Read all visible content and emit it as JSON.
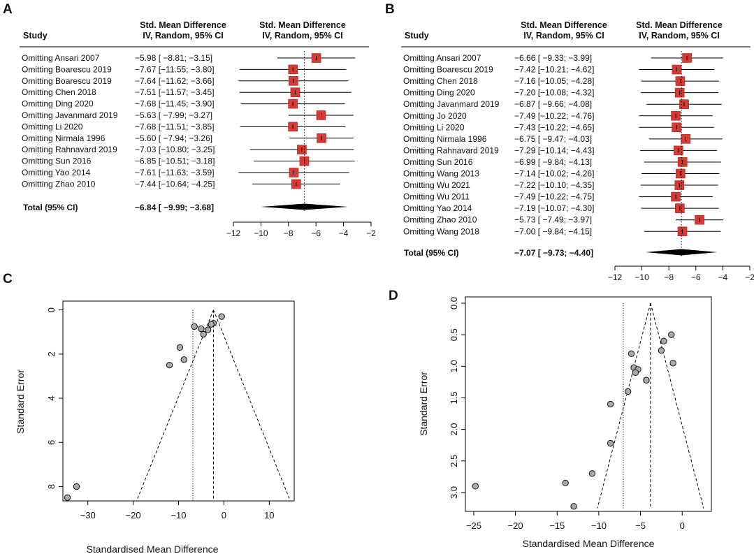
{
  "panels": {
    "A": {
      "letter": "A",
      "study_header": "Study",
      "effect_header": [
        "Std. Mean Difference",
        "IV, Random, 95% CI"
      ],
      "plot_header": [
        "Std. Mean Difference",
        "IV, Random, 95% CI"
      ],
      "total_label": "Total (95% CI)",
      "total_ci_text": "−6.84 [ −9.99; −3.68]"
    },
    "B": {
      "letter": "B",
      "study_header": "Study",
      "effect_header": [
        "Std. Mean Difference",
        "IV, Random, 95% CI"
      ],
      "plot_header": [
        "Std. Mean Difference",
        "IV, Random, 95% CI"
      ],
      "total_label": "Total (95% CI)",
      "total_ci_text": "−7.07 [ −9.73; −4.40]"
    },
    "C": {
      "letter": "C",
      "ylabel": "Standard Error",
      "xlabel": "Standardised Mean Difference"
    },
    "D": {
      "letter": "D",
      "ylabel": "Standard Error",
      "xlabel": "Standardised Mean Difference"
    }
  },
  "chart_data": [
    {
      "id": "A",
      "type": "forest",
      "xlim": [
        -12,
        -2
      ],
      "xticks": [
        -12,
        -10,
        -8,
        -6,
        -4,
        -2
      ],
      "xtick_labels": [
        "−12",
        "−10",
        "−8",
        "−6",
        "−4",
        "−2"
      ],
      "studies": [
        {
          "label": "Omitting Ansari 2007",
          "est": -5.98,
          "lo": -8.81,
          "hi": -3.15,
          "ci_text": "−5.98 [ −8.81; −3.15]"
        },
        {
          "label": "Omitting Boarescu 2019",
          "est": -7.67,
          "lo": -11.55,
          "hi": -3.8,
          "ci_text": "−7.67 [−11.55; −3.80]"
        },
        {
          "label": "Omitting Boarescu 2019",
          "est": -7.64,
          "lo": -11.62,
          "hi": -3.66,
          "ci_text": "−7.64 [−11.62; −3.66]"
        },
        {
          "label": "Omitting Chen 2018",
          "est": -7.51,
          "lo": -11.57,
          "hi": -3.45,
          "ci_text": "−7.51 [−11.57; −3.45]"
        },
        {
          "label": "Omitting Ding 2020",
          "est": -7.68,
          "lo": -11.45,
          "hi": -3.9,
          "ci_text": "−7.68 [−11.45; −3.90]"
        },
        {
          "label": "Omitting Javanmard 2019",
          "est": -5.63,
          "lo": -7.99,
          "hi": -3.27,
          "ci_text": "−5.63 [ −7.99; −3.27]"
        },
        {
          "label": "Omitting Li 2020",
          "est": -7.68,
          "lo": -11.51,
          "hi": -3.85,
          "ci_text": "−7.68 [−11.51; −3.85]"
        },
        {
          "label": "Omitting Nirmala 1996",
          "est": -5.6,
          "lo": -7.94,
          "hi": -3.26,
          "ci_text": "−5.60 [ −7.94; −3.26]"
        },
        {
          "label": "Omitting Rahnavard 2019",
          "est": -7.03,
          "lo": -10.8,
          "hi": -3.25,
          "ci_text": "−7.03 [−10.80; −3.25]"
        },
        {
          "label": "Omitting Sun 2016",
          "est": -6.85,
          "lo": -10.51,
          "hi": -3.18,
          "ci_text": "−6.85 [−10.51; −3.18]"
        },
        {
          "label": "Omitting Yao 2014",
          "est": -7.61,
          "lo": -11.63,
          "hi": -3.59,
          "ci_text": "−7.61 [−11.63; −3.59]"
        },
        {
          "label": "Omitting Zhao 2010",
          "est": -7.44,
          "lo": -10.64,
          "hi": -4.25,
          "ci_text": "−7.44 [−10.64; −4.25]"
        }
      ],
      "total": {
        "est": -6.84,
        "lo": -9.99,
        "hi": -3.68
      }
    },
    {
      "id": "B",
      "type": "forest",
      "xlim": [
        -12,
        -2
      ],
      "xticks": [
        -12,
        -10,
        -8,
        -6,
        -4,
        -2
      ],
      "xtick_labels": [
        "−12",
        "−10",
        "−8",
        "−6",
        "−4",
        "−2"
      ],
      "studies": [
        {
          "label": "Omitting Ansari 2007",
          "est": -6.66,
          "lo": -9.33,
          "hi": -3.99,
          "ci_text": "−6.66 [ −9.33; −3.99]"
        },
        {
          "label": "Omitting Boarescu 2019",
          "est": -7.42,
          "lo": -10.21,
          "hi": -4.62,
          "ci_text": "−7.42 [−10.21; −4.62]"
        },
        {
          "label": "Omitting Chen 2018",
          "est": -7.16,
          "lo": -10.05,
          "hi": -4.28,
          "ci_text": "−7.16 [−10.05; −4.28]"
        },
        {
          "label": "Omitting Ding 2020",
          "est": -7.2,
          "lo": -10.08,
          "hi": -4.32,
          "ci_text": "−7.20 [−10.08; −4.32]"
        },
        {
          "label": "Omitting Javanmard 2019",
          "est": -6.87,
          "lo": -9.66,
          "hi": -4.08,
          "ci_text": "−6.87 [ −9.66; −4.08]"
        },
        {
          "label": "Omitting Jo 2020",
          "est": -7.49,
          "lo": -10.22,
          "hi": -4.76,
          "ci_text": "−7.49 [−10.22; −4.76]"
        },
        {
          "label": "Omitting Li 2020",
          "est": -7.43,
          "lo": -10.22,
          "hi": -4.65,
          "ci_text": "−7.43 [−10.22; −4.65]"
        },
        {
          "label": "Omitting Nirmala 1996",
          "est": -6.75,
          "lo": -9.47,
          "hi": -4.03,
          "ci_text": "−6.75 [ −9.47; −4.03]"
        },
        {
          "label": "Omitting Rahnavard 2019",
          "est": -7.29,
          "lo": -10.14,
          "hi": -4.43,
          "ci_text": "−7.29 [−10.14; −4.43]"
        },
        {
          "label": "Omitting Sun 2016",
          "est": -6.99,
          "lo": -9.84,
          "hi": -4.13,
          "ci_text": "−6.99 [ −9.84; −4.13]"
        },
        {
          "label": "Omitting Wang 2013",
          "est": -7.14,
          "lo": -10.02,
          "hi": -4.26,
          "ci_text": "−7.14 [−10.02; −4.26]"
        },
        {
          "label": "Omitting Wu 2021",
          "est": -7.22,
          "lo": -10.1,
          "hi": -4.35,
          "ci_text": "−7.22 [−10.10; −4.35]"
        },
        {
          "label": "Omitting Wu 2011",
          "est": -7.49,
          "lo": -10.22,
          "hi": -4.75,
          "ci_text": "−7.49 [−10.22; −4.75]"
        },
        {
          "label": "Omitting Yao 2014",
          "est": -7.19,
          "lo": -10.07,
          "hi": -4.3,
          "ci_text": "−7.19 [−10.07; −4.30]"
        },
        {
          "label": "Omitting Zhao 2010",
          "est": -5.73,
          "lo": -7.49,
          "hi": -3.97,
          "ci_text": "−5.73 [ −7.49; −3.97]"
        },
        {
          "label": "Omitting Wang 2018",
          "est": -7.0,
          "lo": -9.84,
          "hi": -4.15,
          "ci_text": "−7.00 [ −9.84; −4.15]"
        }
      ],
      "total": {
        "est": -7.07,
        "lo": -9.73,
        "hi": -4.4
      }
    },
    {
      "id": "C",
      "type": "scatter",
      "subtype": "funnel",
      "xlim": [
        -35.5,
        15.5
      ],
      "ylim": [
        8.65,
        -0.4
      ],
      "xticks": [
        -30,
        -20,
        -10,
        0,
        10
      ],
      "xtick_labels": [
        "−30",
        "−20",
        "−10",
        "0",
        "10"
      ],
      "yticks": [
        0,
        2,
        4,
        6,
        8
      ],
      "ytick_labels": [
        "0",
        "2",
        "4",
        "6",
        "8"
      ],
      "pooled_est": -2.3,
      "random_est": -6.84,
      "funnel_max_se": 8.65,
      "points": [
        {
          "x": -0.5,
          "y": 0.3
        },
        {
          "x": -2.3,
          "y": 0.6
        },
        {
          "x": -2.8,
          "y": 0.65
        },
        {
          "x": -6.5,
          "y": 0.75
        },
        {
          "x": -5.0,
          "y": 0.85
        },
        {
          "x": -3.5,
          "y": 0.9
        },
        {
          "x": -4.5,
          "y": 1.1
        },
        {
          "x": -9.7,
          "y": 1.7
        },
        {
          "x": -8.8,
          "y": 2.25
        },
        {
          "x": -12.0,
          "y": 2.5
        },
        {
          "x": -32.5,
          "y": 8.0
        },
        {
          "x": -34.5,
          "y": 8.5
        }
      ]
    },
    {
      "id": "D",
      "type": "scatter",
      "subtype": "funnel",
      "xlim": [
        -26,
        3.5
      ],
      "ylim": [
        3.3,
        -0.1
      ],
      "xticks": [
        -25,
        -20,
        -15,
        -10,
        -5,
        0
      ],
      "xtick_labels": [
        "−25",
        "−20",
        "−15",
        "−10",
        "−5",
        "0"
      ],
      "yticks": [
        0,
        0.5,
        1,
        1.5,
        2,
        2.5,
        3
      ],
      "ytick_labels": [
        "0.0",
        "0.5",
        "1.0",
        "1.5",
        "2.0",
        "2.5",
        "3.0"
      ],
      "pooled_est": -3.8,
      "random_est": -7.07,
      "funnel_max_se": 3.25,
      "points": [
        {
          "x": -1.3,
          "y": 0.5
        },
        {
          "x": -2.2,
          "y": 0.6
        },
        {
          "x": -2.5,
          "y": 0.75
        },
        {
          "x": -6.1,
          "y": 0.8
        },
        {
          "x": -1.1,
          "y": 0.95
        },
        {
          "x": -5.8,
          "y": 1.02
        },
        {
          "x": -5.3,
          "y": 1.05
        },
        {
          "x": -5.6,
          "y": 1.1
        },
        {
          "x": -4.3,
          "y": 1.22
        },
        {
          "x": -6.5,
          "y": 1.4
        },
        {
          "x": -8.6,
          "y": 1.6
        },
        {
          "x": -8.6,
          "y": 2.22
        },
        {
          "x": -10.8,
          "y": 2.7
        },
        {
          "x": -14.0,
          "y": 2.85
        },
        {
          "x": -24.8,
          "y": 2.9
        },
        {
          "x": -13.0,
          "y": 3.22
        }
      ]
    }
  ]
}
